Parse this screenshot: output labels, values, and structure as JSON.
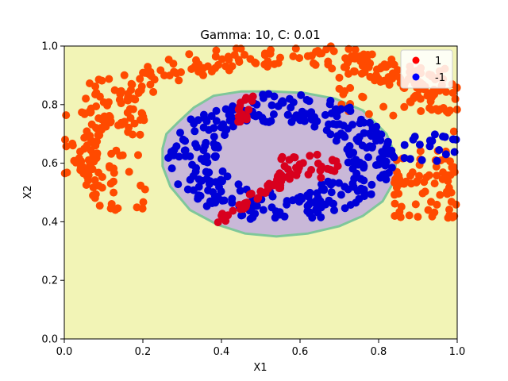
{
  "chart_data": {
    "type": "scatter",
    "title": "Gamma: 10, C: 0.01",
    "xlabel": "X1",
    "ylabel": "X2",
    "xlim": [
      0.0,
      1.0
    ],
    "ylim": [
      0.0,
      1.0
    ],
    "x_ticks": [
      "0.0",
      "0.2",
      "0.4",
      "0.6",
      "0.8",
      "1.0"
    ],
    "y_ticks": [
      "0.0",
      "0.2",
      "0.4",
      "0.6",
      "0.8",
      "1.0"
    ],
    "grid": false,
    "legend_position": "top-right",
    "colors": {
      "background_region": "#f2f4b6",
      "decision_region": "#c9b8d8",
      "boundary": "#7fc79a",
      "class_pos": "#ff4a00",
      "class_pos_inner": "#d8001e",
      "class_neg": "#0000d8",
      "legend_pos": "#ff0000",
      "legend_neg": "#0000ff"
    },
    "decision_boundary": [
      [
        0.26,
        0.7
      ],
      [
        0.29,
        0.74
      ],
      [
        0.33,
        0.79
      ],
      [
        0.38,
        0.83
      ],
      [
        0.45,
        0.845
      ],
      [
        0.53,
        0.845
      ],
      [
        0.61,
        0.84
      ],
      [
        0.69,
        0.82
      ],
      [
        0.76,
        0.78
      ],
      [
        0.82,
        0.7
      ],
      [
        0.845,
        0.62
      ],
      [
        0.84,
        0.54
      ],
      [
        0.81,
        0.47
      ],
      [
        0.76,
        0.42
      ],
      [
        0.7,
        0.385
      ],
      [
        0.62,
        0.36
      ],
      [
        0.54,
        0.35
      ],
      [
        0.46,
        0.36
      ],
      [
        0.39,
        0.39
      ],
      [
        0.32,
        0.44
      ],
      [
        0.27,
        0.52
      ],
      [
        0.25,
        0.59
      ],
      [
        0.25,
        0.65
      ]
    ],
    "series": [
      {
        "name": "1",
        "regions": [
          {
            "label": "outer-arc",
            "x": [
              0.05,
              1.0
            ],
            "y": [
              0.41,
              0.99
            ]
          },
          {
            "label": "inner-arms",
            "x": [
              0.39,
              0.7
            ],
            "y": [
              0.4,
              0.84
            ]
          }
        ]
      },
      {
        "name": "-1",
        "regions": [
          {
            "label": "inner-ring",
            "x": [
              0.19,
              1.0
            ],
            "y": [
              0.4,
              0.87
            ]
          }
        ]
      }
    ]
  }
}
